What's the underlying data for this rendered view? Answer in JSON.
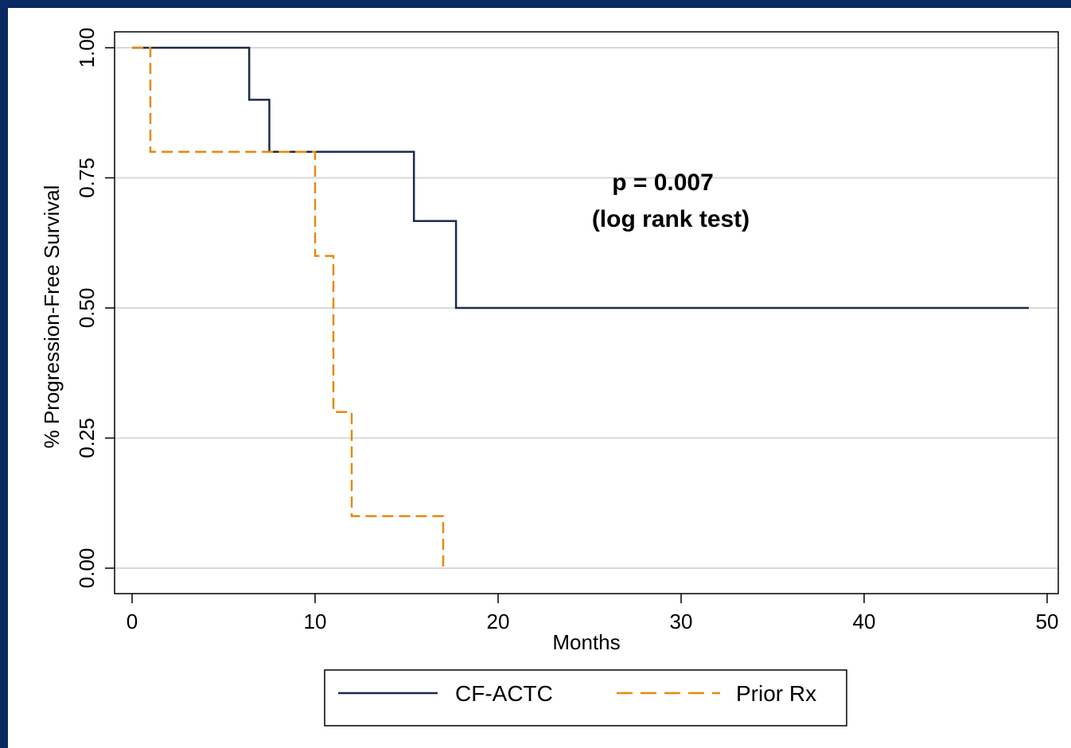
{
  "chart_data": {
    "type": "line",
    "title": "",
    "xlabel": "Months",
    "ylabel": "% Progression-Free Survival",
    "xlim": [
      0,
      50
    ],
    "ylim": [
      0,
      1
    ],
    "x_ticks": [
      "0",
      "10",
      "20",
      "30",
      "40",
      "50"
    ],
    "y_ticks": [
      "0.00",
      "0.25",
      "0.50",
      "0.75",
      "1.00"
    ],
    "grid": "horizontal",
    "legend_position": "bottom",
    "annotations": [
      "p = 0.007",
      "(log rank test)"
    ],
    "series": [
      {
        "name": "CF-ACTC",
        "color": "#1c2b4d",
        "style": "solid",
        "step": true,
        "x": [
          0,
          6.4,
          6.4,
          7.5,
          7.5,
          15.4,
          15.4,
          17.7,
          17.7,
          49
        ],
        "y": [
          1.0,
          1.0,
          0.9,
          0.9,
          0.8,
          0.8,
          0.667,
          0.667,
          0.5,
          0.5
        ]
      },
      {
        "name": "Prior Rx",
        "color": "#e8890b",
        "style": "dashed",
        "step": true,
        "x": [
          0,
          1,
          1,
          10,
          10,
          11,
          11,
          12,
          12,
          17,
          17
        ],
        "y": [
          1.0,
          1.0,
          0.8,
          0.8,
          0.6,
          0.6,
          0.3,
          0.3,
          0.1,
          0.1,
          0.0
        ]
      }
    ]
  }
}
